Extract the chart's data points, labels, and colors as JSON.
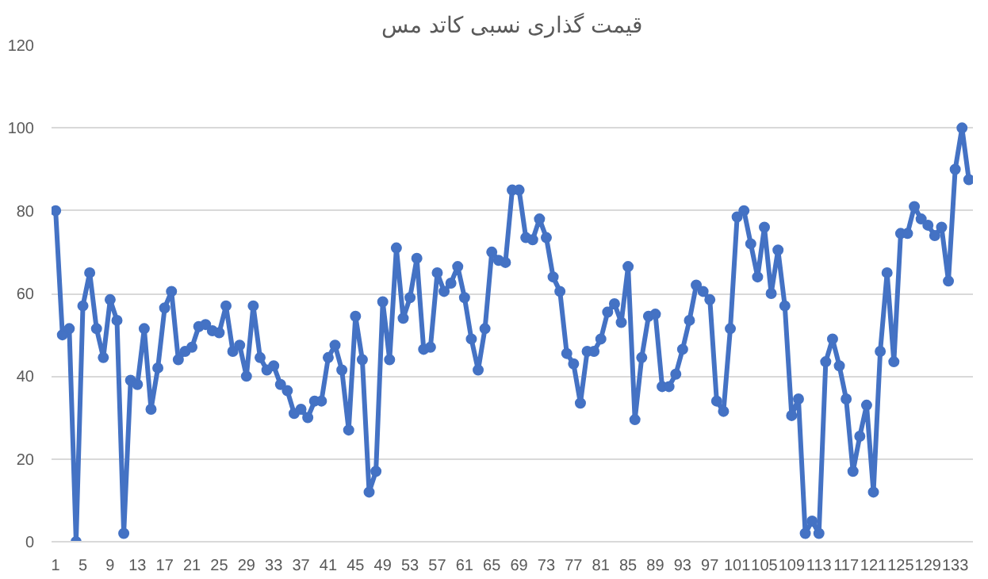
{
  "chart_data": {
    "type": "line",
    "title": "قیمت گذاری نسبی کاتد مس",
    "categories": [
      "1",
      null,
      null,
      null,
      "5",
      null,
      null,
      null,
      "9",
      null,
      null,
      null,
      "13",
      null,
      null,
      null,
      "17",
      null,
      null,
      null,
      "21",
      null,
      null,
      null,
      "25",
      null,
      null,
      null,
      "29",
      null,
      null,
      null,
      "33",
      null,
      null,
      null,
      "37",
      null,
      null,
      null,
      "41",
      null,
      null,
      null,
      "45",
      null,
      null,
      null,
      "49",
      null,
      null,
      null,
      "53",
      null,
      null,
      null,
      "57",
      null,
      null,
      null,
      "61",
      null,
      null,
      null,
      "65",
      null,
      null,
      null,
      "69",
      null,
      null,
      null,
      "73",
      null,
      null,
      null,
      "77",
      null,
      null,
      null,
      "81",
      null,
      null,
      null,
      "85",
      null,
      null,
      null,
      "89",
      null,
      null,
      null,
      "93",
      null,
      null,
      null,
      "97",
      null,
      null,
      null,
      "101",
      null,
      null,
      null,
      "105",
      null,
      null,
      null,
      "109",
      null,
      null,
      null,
      "113",
      null,
      null,
      null,
      "117",
      null,
      null,
      null,
      "121",
      null,
      null,
      null,
      "125",
      null,
      null,
      null,
      "129",
      null,
      null,
      null,
      "133",
      null,
      null
    ],
    "series": [
      {
        "color": "#4472c4",
        "values": [
          80,
          50,
          51.5,
          0,
          57,
          65,
          51.5,
          44.5,
          58.5,
          53.5,
          2,
          39,
          38,
          51.5,
          32,
          42,
          56.5,
          60.5,
          44,
          46,
          47,
          52,
          52.5,
          51,
          50.5,
          57,
          46,
          47.5,
          40,
          57,
          44.5,
          41.5,
          42.5,
          38,
          36.5,
          31,
          32,
          30,
          34,
          34,
          44.5,
          47.5,
          41.5,
          27,
          54.5,
          44,
          12,
          17,
          58,
          44,
          71,
          54,
          59,
          68.5,
          46.5,
          47,
          65,
          60.5,
          62.5,
          66.5,
          59,
          49,
          41.5,
          51.5,
          70,
          68,
          67.5,
          85,
          85,
          73.5,
          73,
          78,
          73.5,
          64,
          60.5,
          45.5,
          43,
          33.5,
          46,
          46,
          49,
          55.5,
          57.5,
          53,
          66.5,
          29.5,
          44.5,
          54.5,
          55,
          37.5,
          37.5,
          40.5,
          46.5,
          53.5,
          62,
          60.5,
          58.5,
          34,
          31.5,
          51.5,
          78.5,
          80,
          72,
          64,
          76,
          60,
          70.5,
          57,
          30.5,
          34.5,
          2,
          5,
          2,
          43.5,
          49,
          42.5,
          34.5,
          17,
          25.5,
          33,
          12,
          46,
          65,
          43.5,
          74.5,
          74.5,
          81,
          78,
          76.5,
          74,
          76,
          63,
          90,
          100,
          87.5
        ]
      }
    ],
    "ylim": [
      0,
      120
    ],
    "yticks": [
      0,
      20,
      40,
      60,
      80,
      100,
      120
    ],
    "grid": "y",
    "marker": "circle",
    "line_style": "solid"
  }
}
